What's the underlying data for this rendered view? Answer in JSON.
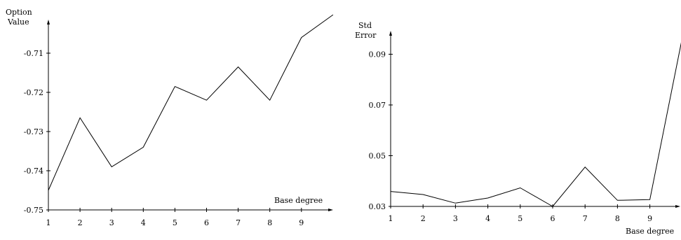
{
  "chart_data": [
    {
      "type": "line",
      "ylabel": [
        "Option",
        "Value"
      ],
      "xlabel": "Base degree",
      "x_ticks": [
        1,
        2,
        3,
        4,
        5,
        6,
        7,
        8,
        9
      ],
      "y_ticks": [
        "-0.71",
        "-0.72",
        "-0.73",
        "-0.74",
        "-0.75"
      ],
      "ylim": [
        -0.75,
        -0.7
      ],
      "xlim": [
        1,
        10
      ],
      "x": [
        1,
        2,
        3,
        4,
        5,
        6,
        7,
        8,
        9,
        10
      ],
      "values": [
        -0.745,
        -0.7265,
        -0.739,
        -0.734,
        -0.7185,
        -0.722,
        -0.7135,
        -0.722,
        -0.706,
        -0.7002
      ]
    },
    {
      "type": "line",
      "ylabel": [
        "Std",
        "Error"
      ],
      "xlabel": "Base degree",
      "x_ticks": [
        1,
        2,
        3,
        4,
        5,
        6,
        7,
        8,
        9
      ],
      "y_ticks": [
        "0.09",
        "0.07",
        "0.05",
        "0.03"
      ],
      "ylim": [
        0.03,
        0.1
      ],
      "xlim": [
        1,
        10
      ],
      "x": [
        1,
        2,
        3,
        4,
        5,
        6,
        7,
        8,
        9,
        10
      ],
      "values": [
        0.0359,
        0.0347,
        0.0313,
        0.0333,
        0.0373,
        0.03,
        0.0455,
        0.0324,
        0.0327,
        0.0965
      ]
    }
  ]
}
